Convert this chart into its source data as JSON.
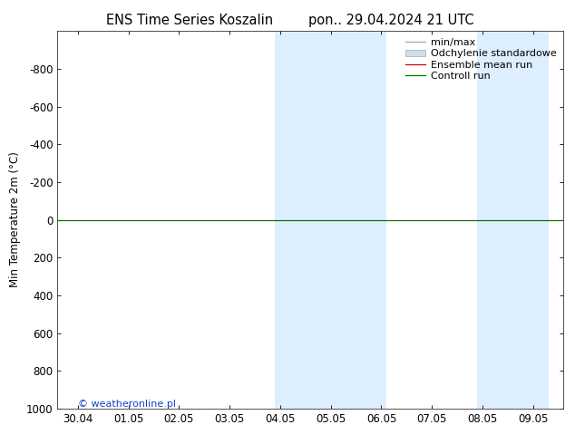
{
  "title_left": "ENS Time Series Koszalin",
  "title_right": "pon.. 29.04.2024 21 UTC",
  "ylabel": "Min Temperature 2m (°C)",
  "ylim_top": -1000,
  "ylim_bottom": 1000,
  "yticks": [
    -800,
    -600,
    -400,
    -200,
    0,
    200,
    400,
    600,
    800,
    1000
  ],
  "xtick_labels": [
    "30.04",
    "01.05",
    "02.05",
    "03.05",
    "04.05",
    "05.05",
    "06.05",
    "07.05",
    "08.05",
    "09.05"
  ],
  "xtick_positions": [
    0,
    1,
    2,
    3,
    4,
    5,
    6,
    7,
    8,
    9
  ],
  "shaded_bands": [
    [
      3.9,
      5.1
    ],
    [
      5.1,
      6.1
    ],
    [
      7.9,
      8.9
    ],
    [
      8.9,
      9.3
    ]
  ],
  "shade_color": "#ddeeff",
  "x_min": -0.4,
  "x_max": 9.6,
  "control_run_y": 0,
  "ensemble_mean_y": 0,
  "background_color": "#ffffff",
  "legend_entries": [
    "min/max",
    "Odchylenie standardowe",
    "Ensemble mean run",
    "Controll run"
  ],
  "legend_colors_line": [
    "#aaaaaa",
    "#cccccc",
    "#cc0000",
    "#007700"
  ],
  "copyright_text": "© weatheronline.pl",
  "copyright_color": "#1144cc",
  "title_fontsize": 10.5,
  "axis_fontsize": 8.5,
  "legend_fontsize": 8
}
